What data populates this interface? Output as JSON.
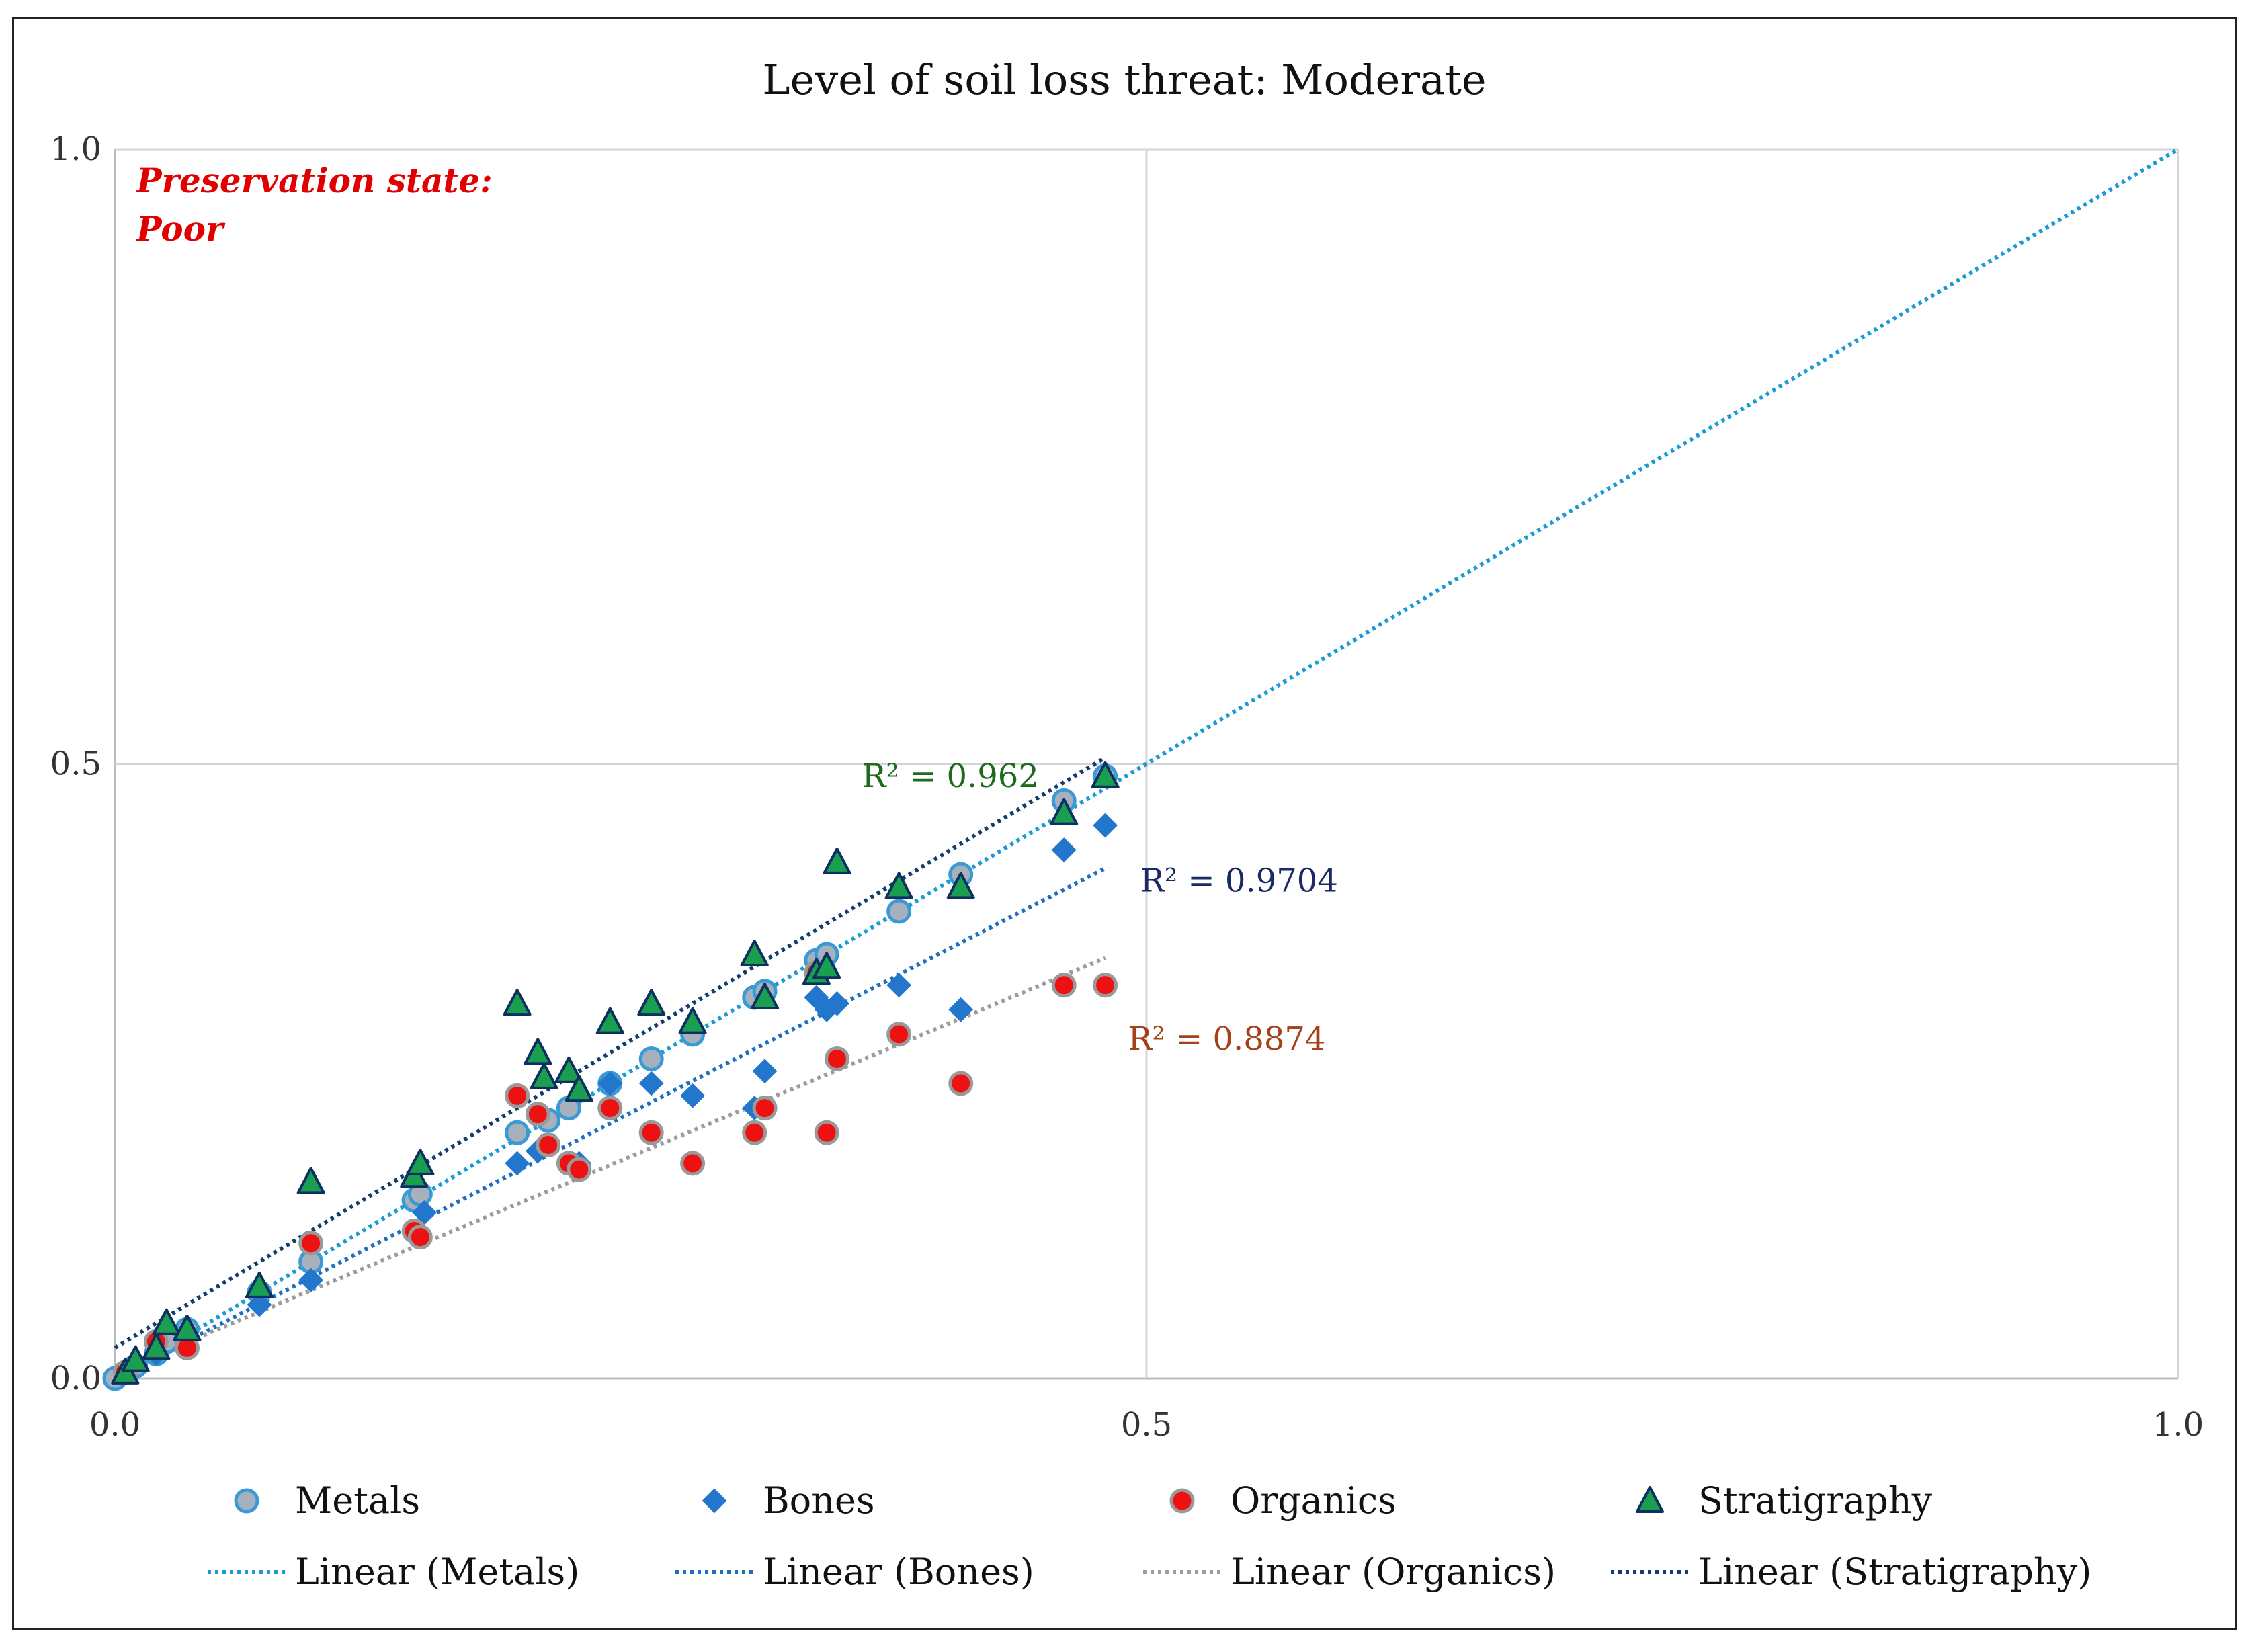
{
  "chart_data": {
    "type": "scatter",
    "title": "Level of soil loss threat: Moderate",
    "xlabel": "",
    "ylabel": "",
    "xlim": [
      0,
      1
    ],
    "ylim": [
      0,
      1
    ],
    "x_ticks": [
      "0.0",
      "0.5",
      "1.0"
    ],
    "y_ticks": [
      "0.0",
      "0.5",
      "1.0"
    ],
    "gridlines": true,
    "annotation": {
      "line1": "Preservation state:",
      "line2": "Poor",
      "color": "#e00000"
    },
    "series": [
      {
        "name": "Metals",
        "marker": "circle",
        "fill": "#a6b1bd",
        "stroke": "#3a9ad6",
        "points": [
          [
            0.0,
            0.0
          ],
          [
            0.01,
            0.01
          ],
          [
            0.02,
            0.02
          ],
          [
            0.025,
            0.03
          ],
          [
            0.035,
            0.04
          ],
          [
            0.07,
            0.07
          ],
          [
            0.095,
            0.095
          ],
          [
            0.145,
            0.145
          ],
          [
            0.148,
            0.15
          ],
          [
            0.195,
            0.2
          ],
          [
            0.21,
            0.21
          ],
          [
            0.22,
            0.22
          ],
          [
            0.24,
            0.24
          ],
          [
            0.26,
            0.26
          ],
          [
            0.28,
            0.28
          ],
          [
            0.31,
            0.31
          ],
          [
            0.315,
            0.315
          ],
          [
            0.34,
            0.34
          ],
          [
            0.345,
            0.345
          ],
          [
            0.38,
            0.38
          ],
          [
            0.41,
            0.41
          ],
          [
            0.46,
            0.47
          ],
          [
            0.48,
            0.49
          ]
        ]
      },
      {
        "name": "Bones",
        "marker": "diamond",
        "fill": "#2277cc",
        "stroke": "#2277cc",
        "points": [
          [
            0.005,
            0.005
          ],
          [
            0.02,
            0.02
          ],
          [
            0.035,
            0.035
          ],
          [
            0.07,
            0.06
          ],
          [
            0.095,
            0.08
          ],
          [
            0.15,
            0.135
          ],
          [
            0.195,
            0.175
          ],
          [
            0.205,
            0.185
          ],
          [
            0.225,
            0.175
          ],
          [
            0.24,
            0.24
          ],
          [
            0.26,
            0.24
          ],
          [
            0.28,
            0.23
          ],
          [
            0.31,
            0.22
          ],
          [
            0.315,
            0.25
          ],
          [
            0.34,
            0.31
          ],
          [
            0.345,
            0.3
          ],
          [
            0.35,
            0.305
          ],
          [
            0.38,
            0.32
          ],
          [
            0.41,
            0.3
          ],
          [
            0.46,
            0.43
          ],
          [
            0.48,
            0.45
          ]
        ]
      },
      {
        "name": "Organics",
        "marker": "circle",
        "fill": "#ee1111",
        "stroke": "#999999",
        "points": [
          [
            0.005,
            0.005
          ],
          [
            0.02,
            0.03
          ],
          [
            0.035,
            0.025
          ],
          [
            0.095,
            0.11
          ],
          [
            0.145,
            0.12
          ],
          [
            0.148,
            0.115
          ],
          [
            0.195,
            0.23
          ],
          [
            0.205,
            0.215
          ],
          [
            0.21,
            0.19
          ],
          [
            0.22,
            0.175
          ],
          [
            0.225,
            0.17
          ],
          [
            0.24,
            0.22
          ],
          [
            0.26,
            0.2
          ],
          [
            0.28,
            0.175
          ],
          [
            0.31,
            0.2
          ],
          [
            0.315,
            0.22
          ],
          [
            0.34,
            0.33
          ],
          [
            0.345,
            0.2
          ],
          [
            0.35,
            0.26
          ],
          [
            0.38,
            0.28
          ],
          [
            0.41,
            0.24
          ],
          [
            0.46,
            0.32
          ],
          [
            0.48,
            0.32
          ]
        ]
      },
      {
        "name": "Stratigraphy",
        "marker": "triangle",
        "fill": "#1a9e50",
        "stroke": "#0d3060",
        "points": [
          [
            0.005,
            0.005
          ],
          [
            0.01,
            0.015
          ],
          [
            0.02,
            0.025
          ],
          [
            0.025,
            0.045
          ],
          [
            0.035,
            0.04
          ],
          [
            0.07,
            0.075
          ],
          [
            0.095,
            0.16
          ],
          [
            0.145,
            0.165
          ],
          [
            0.148,
            0.175
          ],
          [
            0.195,
            0.305
          ],
          [
            0.205,
            0.265
          ],
          [
            0.208,
            0.245
          ],
          [
            0.22,
            0.25
          ],
          [
            0.225,
            0.235
          ],
          [
            0.24,
            0.29
          ],
          [
            0.26,
            0.305
          ],
          [
            0.28,
            0.29
          ],
          [
            0.31,
            0.345
          ],
          [
            0.315,
            0.31
          ],
          [
            0.34,
            0.33
          ],
          [
            0.345,
            0.335
          ],
          [
            0.35,
            0.42
          ],
          [
            0.38,
            0.4
          ],
          [
            0.41,
            0.4
          ],
          [
            0.46,
            0.46
          ],
          [
            0.48,
            0.49
          ]
        ]
      }
    ],
    "trendlines": [
      {
        "name": "Linear (Metals)",
        "color": "#1a9ad6",
        "from": [
          0.0,
          0.0
        ],
        "to": [
          1.0,
          1.0
        ]
      },
      {
        "name": "Linear (Bones)",
        "color": "#1f6fc0",
        "from": [
          0.0,
          0.0
        ],
        "to": [
          0.48,
          0.415
        ]
      },
      {
        "name": "Linear (Organics)",
        "color": "#9c9c9c",
        "from": [
          0.0,
          0.005
        ],
        "to": [
          0.48,
          0.342
        ]
      },
      {
        "name": "Linear (Stratigraphy)",
        "color": "#123d6e",
        "from": [
          0.0,
          0.025
        ],
        "to": [
          0.48,
          0.505
        ]
      }
    ],
    "r2_labels": [
      {
        "text": "R² = 0.962",
        "color": "#1e6b1e",
        "x": 0.362,
        "y": 0.49
      },
      {
        "text": "R² = 0.9704",
        "color": "#1a2a66",
        "x": 0.497,
        "y": 0.405
      },
      {
        "text": "R² = 0.8874",
        "color": "#a6401a",
        "x": 0.491,
        "y": 0.276
      }
    ],
    "legend_position": "bottom"
  }
}
